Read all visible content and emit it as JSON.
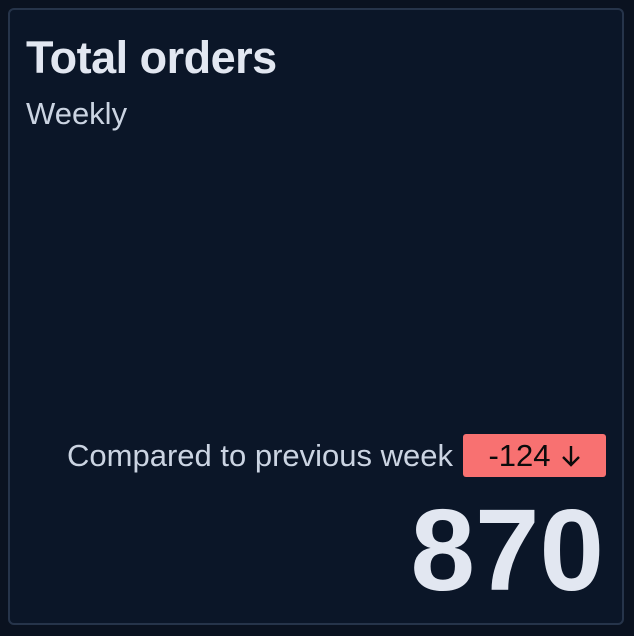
{
  "card": {
    "title": "Total orders",
    "subtitle": "Weekly",
    "comparison_label": "Compared to previous week",
    "delta": "-124",
    "delta_icon": "arrow-down-icon",
    "delta_color": "#f87171",
    "value": "870"
  }
}
